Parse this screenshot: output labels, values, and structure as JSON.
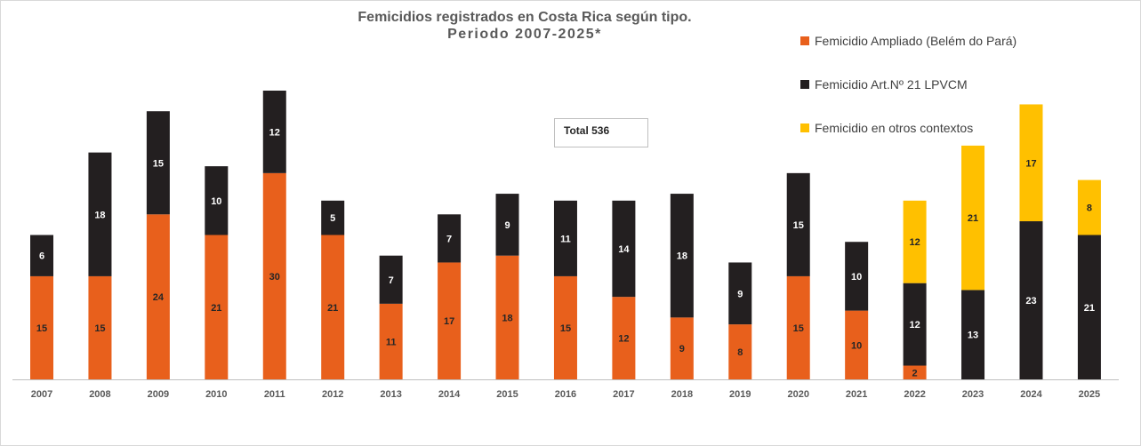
{
  "chart_data": {
    "type": "bar",
    "stacked": true,
    "title": "Femicidios registrados en Costa Rica según tipo.",
    "subtitle": "Periodo 2007-2025*",
    "annotation": "Total 536",
    "categories": [
      "2007",
      "2008",
      "2009",
      "2010",
      "2011",
      "2012",
      "2013",
      "2014",
      "2015",
      "2016",
      "2017",
      "2018",
      "2019",
      "2020",
      "2021",
      "2022",
      "2023",
      "2024",
      "2025"
    ],
    "series": [
      {
        "name": "Femicidio Ampliado (Belém do Pará)",
        "color": "#E8601C",
        "label_color": "#262626",
        "values": [
          15,
          15,
          24,
          21,
          30,
          21,
          11,
          17,
          18,
          15,
          12,
          9,
          8,
          15,
          10,
          2,
          0,
          0,
          0
        ]
      },
      {
        "name": "Femicidio Art.Nº 21 LPVCM",
        "color": "#231F20",
        "label_color": "#ffffff",
        "values": [
          6,
          18,
          15,
          10,
          12,
          5,
          7,
          7,
          9,
          11,
          14,
          18,
          9,
          15,
          10,
          12,
          13,
          23,
          21
        ]
      },
      {
        "name": "Femicidio en otros contextos",
        "color": "#FFC000",
        "label_color": "#262626",
        "values": [
          0,
          0,
          0,
          0,
          0,
          0,
          0,
          0,
          0,
          0,
          0,
          0,
          0,
          0,
          0,
          12,
          21,
          17,
          8
        ]
      }
    ],
    "legend_position": "top-right",
    "grid": false,
    "ylim": [
      0,
      42
    ]
  }
}
